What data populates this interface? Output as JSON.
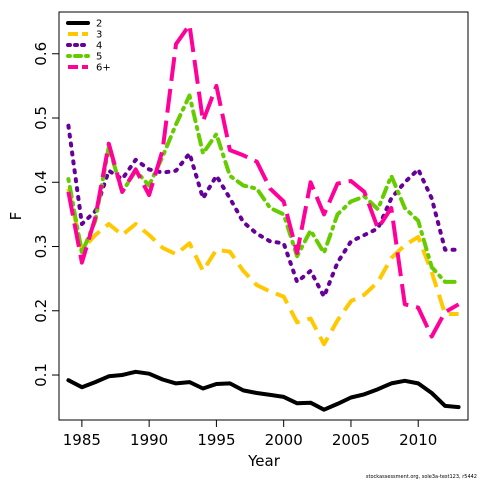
{
  "chart_data": {
    "type": "line",
    "xlabel": "Year",
    "ylabel": "F",
    "xlim": [
      1983.3,
      2013.7
    ],
    "ylim": [
      0.03,
      0.665
    ],
    "xticks": [
      1985,
      1990,
      1995,
      2000,
      2005,
      2010
    ],
    "yticks": [
      0.1,
      0.2,
      0.3,
      0.4,
      0.5,
      0.6
    ],
    "grid": false,
    "legend_position": "top-left",
    "footnote": "stockassessment.org, sole3a-test123, r5442",
    "x": [
      1984,
      1985,
      1986,
      1987,
      1988,
      1989,
      1990,
      1991,
      1992,
      1993,
      1994,
      1995,
      1996,
      1997,
      1998,
      1999,
      2000,
      2001,
      2002,
      2003,
      2004,
      2005,
      2006,
      2007,
      2008,
      2009,
      2010,
      2011,
      2012,
      2013
    ],
    "series": [
      {
        "name": "2",
        "color": "#000000",
        "dash": "solid",
        "values": [
          0.092,
          0.081,
          0.089,
          0.098,
          0.1,
          0.105,
          0.102,
          0.093,
          0.087,
          0.089,
          0.079,
          0.086,
          0.087,
          0.076,
          0.072,
          0.069,
          0.066,
          0.056,
          0.057,
          0.046,
          0.055,
          0.065,
          0.07,
          0.078,
          0.087,
          0.091,
          0.087,
          0.072,
          0.052,
          0.05
        ]
      },
      {
        "name": "3",
        "color": "#FFC800",
        "dash": "long",
        "values": [
          0.39,
          0.295,
          0.318,
          0.335,
          0.318,
          0.335,
          0.318,
          0.298,
          0.288,
          0.305,
          0.262,
          0.295,
          0.292,
          0.262,
          0.24,
          0.23,
          0.222,
          0.182,
          0.188,
          0.148,
          0.185,
          0.215,
          0.225,
          0.245,
          0.282,
          0.302,
          0.315,
          0.26,
          0.195,
          0.195
        ]
      },
      {
        "name": "4",
        "color": "#660099",
        "dash": "dot",
        "values": [
          0.488,
          0.335,
          0.355,
          0.418,
          0.405,
          0.435,
          0.42,
          0.415,
          0.418,
          0.445,
          0.375,
          0.41,
          0.375,
          0.338,
          0.32,
          0.308,
          0.305,
          0.245,
          0.262,
          0.222,
          0.275,
          0.308,
          0.318,
          0.328,
          0.375,
          0.4,
          0.42,
          0.375,
          0.295,
          0.295
        ]
      },
      {
        "name": "5",
        "color": "#66CC00",
        "dash": "dotdash",
        "values": [
          0.405,
          0.29,
          0.34,
          0.455,
          0.385,
          0.418,
          0.395,
          0.44,
          0.49,
          0.535,
          0.445,
          0.475,
          0.41,
          0.395,
          0.39,
          0.36,
          0.35,
          0.285,
          0.325,
          0.29,
          0.35,
          0.37,
          0.378,
          0.358,
          0.41,
          0.36,
          0.34,
          0.268,
          0.245,
          0.245
        ]
      },
      {
        "name": "6+",
        "color": "#FF0099",
        "dash": "longdash",
        "values": [
          0.385,
          0.275,
          0.345,
          0.46,
          0.385,
          0.42,
          0.38,
          0.45,
          0.615,
          0.645,
          0.495,
          0.55,
          0.45,
          0.442,
          0.432,
          0.39,
          0.37,
          0.29,
          0.4,
          0.35,
          0.398,
          0.402,
          0.385,
          0.328,
          0.36,
          0.21,
          0.205,
          0.16,
          0.198,
          0.21
        ]
      }
    ]
  }
}
